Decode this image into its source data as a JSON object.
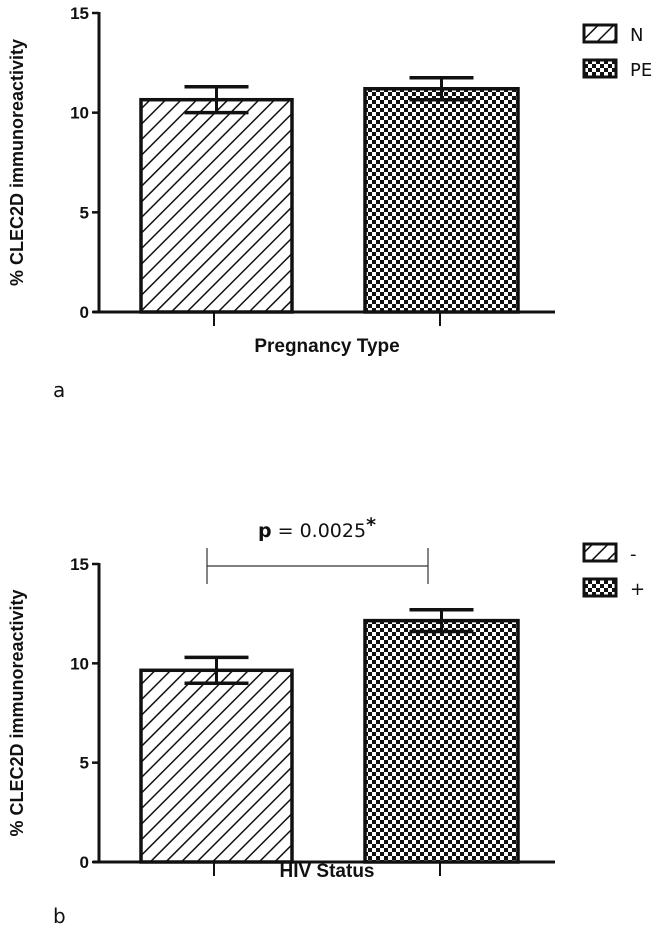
{
  "chart_data": [
    {
      "type": "bar",
      "panel_label": "a",
      "title": "",
      "xlabel": "Pregnancy Type",
      "ylabel": "% CLEC2D immunoreactivity",
      "ylim": [
        0,
        15
      ],
      "yticks": [
        "0",
        "5",
        "10",
        "15"
      ],
      "categories": [
        "N",
        "PE"
      ],
      "values": [
        10.65,
        11.2
      ],
      "errors": [
        0.65,
        0.55
      ],
      "patterns": [
        "hatch",
        "checker"
      ],
      "legend": [
        "N",
        "PE"
      ],
      "legend_position": "top-right",
      "annotation": null
    },
    {
      "type": "bar",
      "panel_label": "b",
      "title": "",
      "xlabel": "HIV Status",
      "ylabel": "% CLEC2D immunoreactivity",
      "ylim": [
        0,
        15
      ],
      "yticks": [
        "0",
        "5",
        "10",
        "15"
      ],
      "categories": [
        "-",
        "+"
      ],
      "values": [
        9.65,
        12.15
      ],
      "errors": [
        0.65,
        0.55
      ],
      "patterns": [
        "hatch",
        "checker"
      ],
      "legend": [
        "-",
        "+"
      ],
      "legend_position": "top-right",
      "annotation": {
        "p_label": "p",
        "text": " = 0.0025",
        "star": "*"
      }
    }
  ]
}
